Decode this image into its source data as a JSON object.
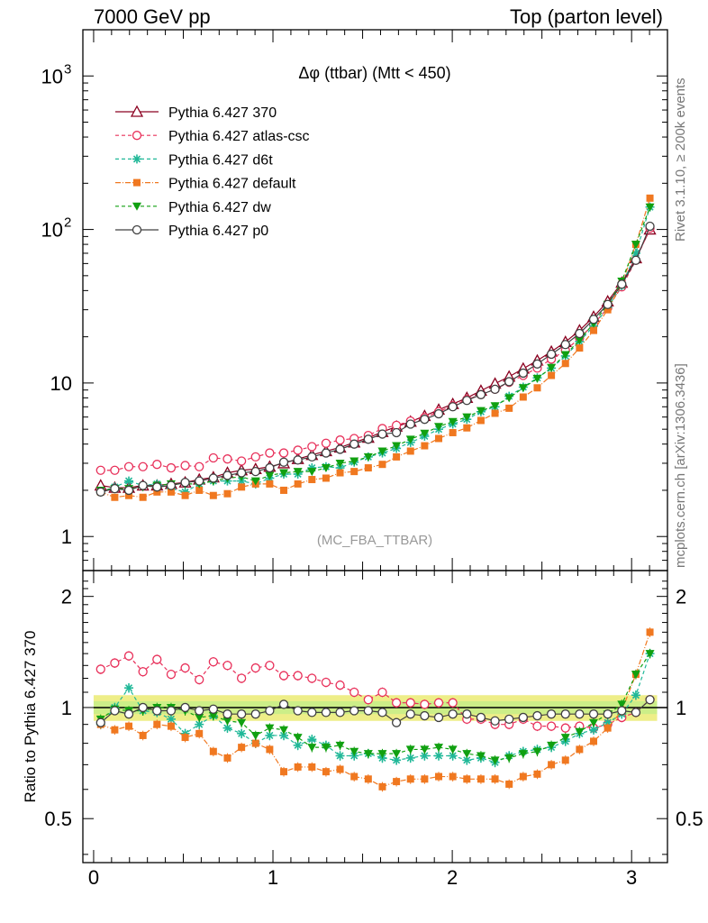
{
  "header": {
    "left": "7000 GeV pp",
    "right": "Top (parton level)"
  },
  "side_text": {
    "rivet": "Rivet 3.1.10, ≥ 200k events",
    "mcplots": "mcplots.cern.ch [arXiv:1306.3436]"
  },
  "chart_data": [
    {
      "type": "line",
      "title": "Δφ (ttbar) (Mtt < 450)",
      "watermark": "(MC_FBA_TTBAR)",
      "xlim": [
        -0.06,
        3.2
      ],
      "ylim": [
        0.6,
        2000
      ],
      "yscale": "log",
      "ytick_labels": [
        "1",
        "10",
        "10^2",
        "10^3"
      ],
      "xtick_labels": [
        "0",
        "1",
        "2",
        "3"
      ],
      "legend_position": "top-left",
      "x": [
        0.0393,
        0.1178,
        0.1963,
        0.2749,
        0.3534,
        0.432,
        0.5105,
        0.589,
        0.6676,
        0.7461,
        0.8247,
        0.9032,
        0.9817,
        1.0603,
        1.1388,
        1.2174,
        1.2959,
        1.3744,
        1.453,
        1.5315,
        1.6101,
        1.6886,
        1.7671,
        1.8457,
        1.9242,
        2.0028,
        2.0813,
        2.1598,
        2.2384,
        2.3169,
        2.3955,
        2.474,
        2.5525,
        2.6311,
        2.7096,
        2.7882,
        2.8667,
        2.9452,
        3.0238,
        3.1023
      ],
      "series": [
        {
          "name": "Pythia 6.427 370",
          "color": "#8b0020",
          "marker": "triangle-open",
          "dash": "solid",
          "values": [
            2.15,
            2.08,
            2.08,
            2.15,
            2.15,
            2.2,
            2.25,
            2.35,
            2.43,
            2.6,
            2.7,
            2.75,
            2.85,
            3.0,
            3.2,
            3.4,
            3.6,
            3.8,
            4.1,
            4.4,
            4.8,
            5.2,
            5.6,
            6.1,
            6.7,
            7.3,
            8.0,
            8.9,
            9.9,
            11.0,
            12.4,
            14.0,
            16.0,
            18.5,
            22.0,
            27.0,
            34.0,
            45.0,
            65.0,
            100.0
          ]
        },
        {
          "name": "Pythia 6.427 atlas-csc",
          "color": "#e8305a",
          "marker": "circle-open",
          "dash": "4,3",
          "values": [
            2.7,
            2.7,
            2.85,
            2.85,
            2.95,
            2.8,
            2.9,
            2.85,
            3.25,
            3.2,
            3.1,
            3.3,
            3.5,
            3.5,
            3.65,
            3.85,
            4.05,
            4.25,
            4.35,
            4.55,
            5.05,
            5.3,
            5.65,
            5.95,
            6.5,
            7.1,
            7.8,
            8.4,
            9.1,
            10.1,
            11.2,
            12.5,
            14.3,
            16.3,
            19.6,
            24.1,
            30.9,
            42.3,
            63.0,
            102.0
          ]
        },
        {
          "name": "Pythia 6.427 d6t",
          "color": "#20b898",
          "marker": "star",
          "dash": "4,3",
          "values": [
            1.95,
            2.1,
            2.3,
            2.15,
            2.2,
            2.05,
            1.95,
            2.2,
            2.3,
            2.3,
            2.3,
            2.2,
            2.4,
            2.55,
            2.55,
            2.8,
            2.85,
            2.8,
            3.05,
            3.3,
            3.5,
            3.75,
            4.1,
            4.5,
            5.0,
            5.4,
            5.8,
            6.5,
            7.0,
            8.2,
            9.4,
            10.8,
            12.5,
            15.0,
            18.6,
            23.5,
            31.0,
            43.0,
            70.0,
            140.0
          ]
        },
        {
          "name": "Pythia 6.427 default",
          "color": "#f07820",
          "marker": "square",
          "dash": "6,2,1,2",
          "values": [
            1.95,
            1.8,
            1.85,
            1.8,
            1.95,
            1.95,
            1.85,
            2.0,
            1.85,
            1.9,
            2.1,
            2.2,
            2.2,
            2.0,
            2.2,
            2.35,
            2.4,
            2.6,
            2.65,
            2.8,
            2.95,
            3.3,
            3.6,
            3.9,
            4.35,
            4.75,
            5.1,
            5.7,
            6.35,
            6.85,
            8.1,
            9.3,
            11.2,
            13.4,
            16.9,
            22.0,
            30.0,
            44.0,
            80.0,
            160.0
          ]
        },
        {
          "name": "Pythia 6.427 dw",
          "color": "#10a010",
          "marker": "triangle-down",
          "dash": "4,3",
          "values": [
            2.0,
            2.05,
            2.05,
            2.1,
            2.15,
            2.2,
            2.2,
            2.2,
            2.3,
            2.4,
            2.45,
            2.3,
            2.5,
            2.6,
            2.65,
            2.65,
            2.8,
            3.0,
            3.1,
            3.3,
            3.6,
            3.9,
            4.3,
            4.7,
            5.2,
            5.6,
            6.0,
            6.6,
            7.1,
            8.0,
            9.3,
            10.7,
            12.6,
            15.3,
            19.0,
            24.5,
            32.5,
            46.0,
            80.0,
            140.0
          ]
        },
        {
          "name": "Pythia 6.427 p0",
          "color": "#404040",
          "marker": "circle-open",
          "dash": "solid",
          "values": [
            1.95,
            2.05,
            2.0,
            2.15,
            2.1,
            2.15,
            2.25,
            2.3,
            2.4,
            2.5,
            2.6,
            2.65,
            2.8,
            3.05,
            3.15,
            3.3,
            3.5,
            3.7,
            4.0,
            4.3,
            4.65,
            4.75,
            5.4,
            5.8,
            6.3,
            7.0,
            7.7,
            8.4,
            9.1,
            10.2,
            11.6,
            13.3,
            15.4,
            17.8,
            21.0,
            26.0,
            32.5,
            44.0,
            63.0,
            105.0
          ]
        }
      ]
    },
    {
      "type": "line",
      "ylabel": "Ratio to Pythia 6.427 370",
      "xlim": [
        -0.06,
        3.2
      ],
      "ylim": [
        0.38,
        2.35
      ],
      "yscale": "log",
      "ytick_labels": [
        "0.5",
        "1",
        "2"
      ],
      "xtick_labels": [
        "0",
        "1",
        "2",
        "3"
      ],
      "reference_band": {
        "low": 0.92,
        "high": 1.08,
        "colors": [
          "#eeee88",
          "#ccee88"
        ]
      },
      "x": [
        0.0393,
        0.1178,
        0.1963,
        0.2749,
        0.3534,
        0.432,
        0.5105,
        0.589,
        0.6676,
        0.7461,
        0.8247,
        0.9032,
        0.9817,
        1.0603,
        1.1388,
        1.2174,
        1.2959,
        1.3744,
        1.453,
        1.5315,
        1.6101,
        1.6886,
        1.7671,
        1.8457,
        1.9242,
        2.0028,
        2.0813,
        2.1598,
        2.2384,
        2.3169,
        2.3955,
        2.474,
        2.5525,
        2.6311,
        2.7096,
        2.7882,
        2.8667,
        2.9452,
        3.0238,
        3.1023
      ],
      "series": [
        {
          "name": "Pythia 6.427 atlas-csc",
          "color": "#e8305a",
          "marker": "circle-open",
          "dash": "4,3",
          "values": [
            1.27,
            1.32,
            1.38,
            1.25,
            1.35,
            1.23,
            1.28,
            1.19,
            1.33,
            1.3,
            1.2,
            1.28,
            1.3,
            1.22,
            1.22,
            1.2,
            1.17,
            1.15,
            1.1,
            1.05,
            1.1,
            1.03,
            1.03,
            1.02,
            1.03,
            1.03,
            0.93,
            0.93,
            0.9,
            0.9,
            0.93,
            0.89,
            0.89,
            0.88,
            0.89,
            0.88,
            0.9,
            0.94,
            0.97,
            1.05
          ]
        },
        {
          "name": "Pythia 6.427 d6t",
          "color": "#20b898",
          "marker": "star",
          "dash": "4,3",
          "values": [
            0.9,
            1.0,
            1.13,
            0.98,
            0.97,
            0.93,
            0.85,
            0.9,
            0.95,
            0.88,
            0.85,
            0.8,
            0.84,
            0.84,
            0.79,
            0.82,
            0.79,
            0.74,
            0.74,
            0.75,
            0.73,
            0.72,
            0.73,
            0.74,
            0.74,
            0.74,
            0.72,
            0.73,
            0.71,
            0.74,
            0.76,
            0.77,
            0.78,
            0.81,
            0.85,
            0.87,
            0.91,
            0.96,
            1.08,
            1.4
          ]
        },
        {
          "name": "Pythia 6.427 default",
          "color": "#f07820",
          "marker": "square",
          "dash": "6,2,1,2",
          "values": [
            0.9,
            0.87,
            0.89,
            0.84,
            0.9,
            0.89,
            0.83,
            0.85,
            0.76,
            0.73,
            0.78,
            0.8,
            0.77,
            0.67,
            0.69,
            0.69,
            0.67,
            0.68,
            0.65,
            0.64,
            0.61,
            0.63,
            0.64,
            0.64,
            0.65,
            0.65,
            0.64,
            0.64,
            0.64,
            0.62,
            0.65,
            0.66,
            0.7,
            0.72,
            0.77,
            0.81,
            0.88,
            0.98,
            1.23,
            1.6
          ]
        },
        {
          "name": "Pythia 6.427 dw",
          "color": "#10a010",
          "marker": "triangle-down",
          "dash": "4,3",
          "values": [
            0.93,
            0.99,
            0.98,
            0.98,
            1.0,
            1.0,
            0.98,
            0.94,
            0.95,
            0.92,
            0.91,
            0.84,
            0.88,
            0.87,
            0.83,
            0.78,
            0.78,
            0.79,
            0.76,
            0.75,
            0.75,
            0.75,
            0.77,
            0.77,
            0.78,
            0.77,
            0.75,
            0.74,
            0.72,
            0.73,
            0.75,
            0.76,
            0.79,
            0.83,
            0.86,
            0.91,
            0.96,
            1.02,
            1.23,
            1.4
          ]
        },
        {
          "name": "Pythia 6.427 p0",
          "color": "#404040",
          "marker": "circle-open",
          "dash": "solid",
          "values": [
            0.91,
            0.98,
            0.96,
            1.0,
            0.98,
            0.98,
            1.0,
            0.98,
            0.99,
            0.96,
            0.96,
            0.96,
            0.98,
            1.02,
            0.98,
            0.97,
            0.97,
            0.97,
            0.98,
            0.98,
            0.97,
            0.91,
            0.96,
            0.95,
            0.94,
            0.96,
            0.96,
            0.94,
            0.92,
            0.93,
            0.94,
            0.95,
            0.96,
            0.96,
            0.96,
            0.96,
            0.96,
            0.98,
            0.97,
            1.05
          ]
        }
      ]
    }
  ]
}
